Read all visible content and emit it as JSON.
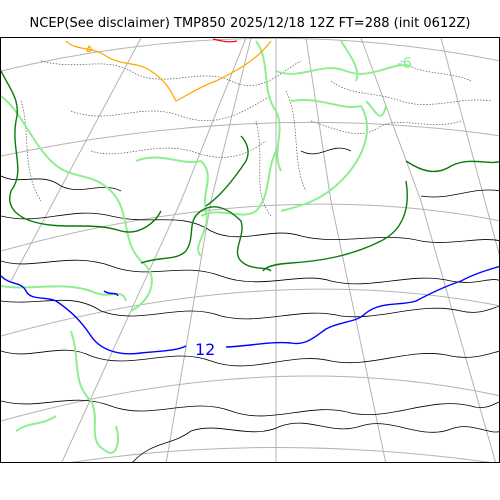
{
  "map": {
    "title": "NCEP(See disclaimer) TMP850 2025/12/18 12Z FT=288 (init 0612Z)",
    "contour_labels": [
      "12",
      "-6"
    ],
    "colors": {
      "graticule": "#b3b3b3",
      "coast": "#000000",
      "dotted_terrain": "#555555",
      "isotherm_0": "#0a7a0a",
      "isotherm_minus": "#90ee90",
      "isotherm_12": "#0000ff",
      "isotherm_cold": "#ffa500",
      "isotherm_red": "#ff0000"
    }
  }
}
